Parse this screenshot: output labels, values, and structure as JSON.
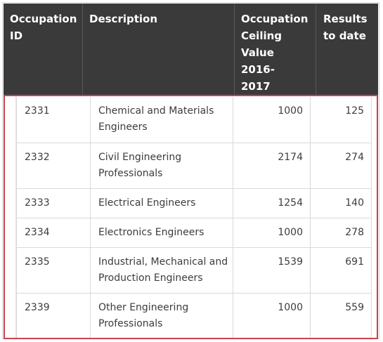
{
  "table": {
    "headers": {
      "occupation_id": [
        "Occupation",
        "ID"
      ],
      "description": [
        "Description"
      ],
      "ceiling": [
        "Occupation",
        "Ceiling",
        "Value 2016-",
        "2017"
      ],
      "results": [
        "Results",
        "to date"
      ]
    },
    "rows": [
      {
        "id": "2331",
        "description": [
          "Chemical and Materials",
          "Engineers"
        ],
        "ceiling": "1000",
        "results": "125"
      },
      {
        "id": "2332",
        "description": [
          "Civil Engineering",
          "Professionals"
        ],
        "ceiling": "2174",
        "results": "274"
      },
      {
        "id": "2333",
        "description": [
          "Electrical Engineers"
        ],
        "ceiling": "1254",
        "results": "140"
      },
      {
        "id": "2334",
        "description": [
          "Electronics Engineers"
        ],
        "ceiling": "1000",
        "results": "278"
      },
      {
        "id": "2335",
        "description": [
          "Industrial, Mechanical and",
          "Production Engineers"
        ],
        "ceiling": "1539",
        "results": "691"
      },
      {
        "id": "2339",
        "description": [
          "Other Engineering",
          "Professionals"
        ],
        "ceiling": "1000",
        "results": "559"
      }
    ]
  },
  "colors": {
    "header_bg": "#3a3a3a",
    "header_text": "#ffffff",
    "highlight_border": "#c8434f",
    "body_text": "#3c3c3c",
    "grid_line": "#d9d9d9"
  }
}
